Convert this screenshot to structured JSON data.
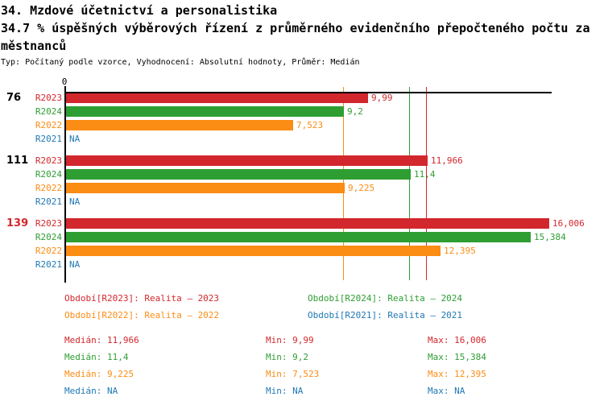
{
  "header": {
    "title_line1": "34. Mzdové účetnictví a personalistika",
    "title_line2": "34.7 % úspěšných výběrových řízení z průměrného evidenčního přepočteného počtu za",
    "title_line3": "městnanců",
    "subtitle": "Typ: Počítaný podle vzorce, Vyhodnocení: Absolutní hodnoty, Průměr: Medián"
  },
  "colors": {
    "axis": "#000000",
    "r2023_red": "#d2272d",
    "r2024_green": "#2e9e33",
    "r2022_orange": "#fb8c14",
    "r2021_blue": "#1f78b4"
  },
  "chart_data": {
    "type": "bar",
    "orientation": "horizontal",
    "xlim": [
      0,
      16.1
    ],
    "grid": false,
    "axis": {
      "zero_label": "0"
    },
    "series": [
      {
        "id": "R2023",
        "label": "R2023",
        "color": "#d2272d"
      },
      {
        "id": "R2024",
        "label": "R2024",
        "color": "#2e9e33"
      },
      {
        "id": "R2022",
        "label": "R2022",
        "color": "#fb8c14"
      },
      {
        "id": "R2021",
        "label": "R2021",
        "color": "#1f78b4"
      }
    ],
    "groups": [
      {
        "label": "76",
        "label_color": "#000000",
        "values": [
          9.99,
          9.2,
          7.523,
          null
        ],
        "value_labels": [
          "9,99",
          "9,2",
          "7,523",
          "NA"
        ]
      },
      {
        "label": "111",
        "label_color": "#000000",
        "values": [
          11.966,
          11.4,
          9.225,
          null
        ],
        "value_labels": [
          "11,966",
          "11,4",
          "9,225",
          "NA"
        ]
      },
      {
        "label": "139",
        "label_color": "#d2272d",
        "values": [
          16.006,
          15.384,
          12.395,
          null
        ],
        "value_labels": [
          "16,006",
          "15,384",
          "12,395",
          "NA"
        ]
      }
    ],
    "median_lines": [
      {
        "series": "R2022",
        "value": 9.225,
        "color": "#fb8c14"
      },
      {
        "series": "R2024",
        "value": 11.4,
        "color": "#2e9e33"
      },
      {
        "series": "R2023",
        "value": 11.966,
        "color": "#d2272d"
      }
    ],
    "legend": [
      {
        "text": "Období[R2023]: Realita – 2023",
        "color": "#d2272d",
        "col": 0,
        "row": 0
      },
      {
        "text": "Období[R2024]: Realita – 2024",
        "color": "#2e9e33",
        "col": 1,
        "row": 0
      },
      {
        "text": "Období[R2022]: Realita – 2022",
        "color": "#fb8c14",
        "col": 0,
        "row": 1
      },
      {
        "text": "Období[R2021]: Realita – 2021",
        "color": "#1f78b4",
        "col": 1,
        "row": 1
      }
    ],
    "stats": {
      "labels": {
        "median": "Medián",
        "min": "Min",
        "max": "Max"
      },
      "rows": [
        {
          "series": "R2023",
          "color": "#d2272d",
          "median": "11,966",
          "min": "9,99",
          "max": "16,006"
        },
        {
          "series": "R2024",
          "color": "#2e9e33",
          "median": "11,4",
          "min": "9,2",
          "max": "15,384"
        },
        {
          "series": "R2022",
          "color": "#fb8c14",
          "median": "9,225",
          "min": "7,523",
          "max": "12,395"
        },
        {
          "series": "R2021",
          "color": "#1f78b4",
          "median": "NA",
          "min": "NA",
          "max": "NA"
        }
      ]
    }
  }
}
